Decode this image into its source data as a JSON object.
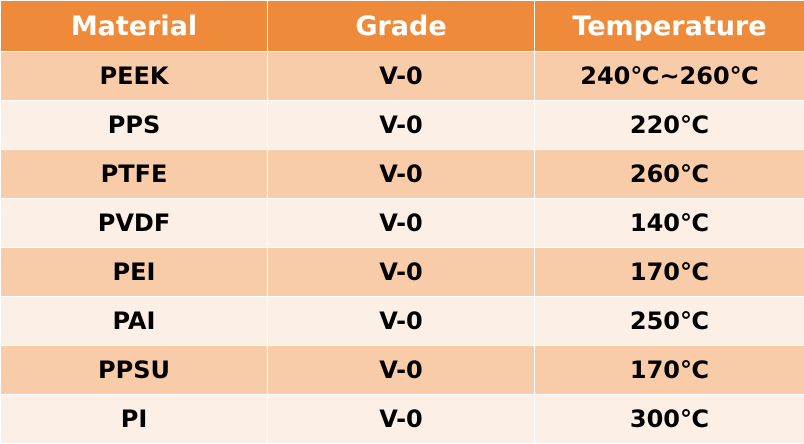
{
  "table": {
    "headers": [
      "Material",
      "Grade",
      "Temperature"
    ],
    "rows": [
      [
        "PEEK",
        "V-0",
        "240℃~260℃"
      ],
      [
        "PPS",
        "V-0",
        "220℃"
      ],
      [
        "PTFE",
        "V-0",
        "260℃"
      ],
      [
        "PVDF",
        "V-0",
        "140℃"
      ],
      [
        "PEI",
        "V-0",
        "170℃"
      ],
      [
        "PAI",
        "V-0",
        "250℃"
      ],
      [
        "PPSU",
        "V-0",
        "170℃"
      ],
      [
        "PI",
        "V-0",
        "300℃"
      ]
    ]
  },
  "colors": {
    "header_bg": "#ef8a3a",
    "row_odd_bg": "#f8cba9",
    "row_even_bg": "#fcefe6"
  }
}
